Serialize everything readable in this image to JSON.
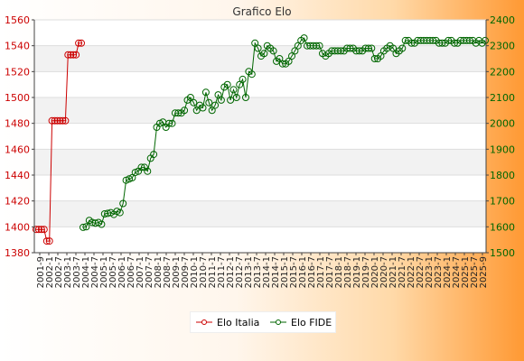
{
  "chart_data": {
    "type": "line",
    "title": "Grafico Elo",
    "y_left": {
      "min": 1380,
      "max": 1560,
      "ticks": [
        1380,
        1400,
        1420,
        1440,
        1460,
        1480,
        1500,
        1520,
        1540,
        1560
      ]
    },
    "y_right": {
      "min": 1500,
      "max": 2400,
      "ticks": [
        1500,
        1600,
        1700,
        1800,
        1900,
        2000,
        2100,
        2200,
        2300,
        2400
      ]
    },
    "x_tick_labels": [
      "2001-9",
      "2002-1",
      "2002-7",
      "2003-1",
      "2003-7",
      "2004-1",
      "2004-7",
      "2005-1",
      "2005-7",
      "2006-1",
      "2006-7",
      "2007-1",
      "2007-7",
      "2008-1",
      "2008-7",
      "2009-1",
      "2009-7",
      "2010-1",
      "2010-7",
      "2011-1",
      "2011-7",
      "2012-1",
      "2012-7",
      "2013-1",
      "2013-7",
      "2014-1",
      "2014-7",
      "2015-1",
      "2015-7",
      "2016-1",
      "2016-7",
      "2017-1",
      "2017-7",
      "2018-1",
      "2018-7",
      "2019-1",
      "2019-7",
      "2020-1",
      "2020-7",
      "2021-1",
      "2021-7",
      "2022-1",
      "2022-7",
      "2023-1",
      "2023-7",
      "2024-1",
      "2024-7",
      "2025-1",
      "2025-7",
      "2025-9"
    ],
    "grid": true,
    "legend_position": "bottom-center",
    "series": [
      {
        "name": "Elo Italia",
        "axis": "left",
        "color": "#cc0000",
        "values": [
          1398,
          1398,
          1398,
          1398,
          1389,
          1389,
          1482,
          1482,
          1482,
          1482,
          1482,
          1482,
          1533,
          1533,
          1533,
          1533,
          1542,
          1542
        ]
      },
      {
        "name": "Elo FIDE",
        "axis": "right",
        "color": "#006600",
        "values": [
          1598,
          1600,
          1625,
          1617,
          1614,
          1617,
          1610,
          1650,
          1652,
          1655,
          1648,
          1660,
          1655,
          1690,
          1780,
          1785,
          1790,
          1810,
          1815,
          1830,
          1830,
          1815,
          1865,
          1880,
          1985,
          2000,
          2005,
          1985,
          2000,
          2000,
          2040,
          2040,
          2040,
          2050,
          2090,
          2100,
          2080,
          2050,
          2070,
          2060,
          2120,
          2080,
          2050,
          2070,
          2110,
          2090,
          2140,
          2150,
          2090,
          2130,
          2100,
          2150,
          2170,
          2100,
          2200,
          2190,
          2310,
          2290,
          2260,
          2270,
          2300,
          2290,
          2280,
          2240,
          2250,
          2230,
          2230,
          2240,
          2260,
          2280,
          2300,
          2320,
          2330,
          2300,
          2300,
          2300,
          2300,
          2300,
          2270,
          2260,
          2270,
          2280,
          2280,
          2280,
          2280,
          2280,
          2290,
          2290,
          2290,
          2280,
          2280,
          2280,
          2290,
          2290,
          2290,
          2250,
          2250,
          2260,
          2280,
          2290,
          2300,
          2290,
          2270,
          2280,
          2290,
          2320,
          2320,
          2310,
          2310,
          2320,
          2320,
          2320,
          2320,
          2320,
          2320,
          2320,
          2310,
          2310,
          2310,
          2320,
          2320,
          2310,
          2310,
          2320,
          2320,
          2320,
          2320,
          2320,
          2310,
          2320,
          2310,
          2320
        ]
      }
    ]
  }
}
